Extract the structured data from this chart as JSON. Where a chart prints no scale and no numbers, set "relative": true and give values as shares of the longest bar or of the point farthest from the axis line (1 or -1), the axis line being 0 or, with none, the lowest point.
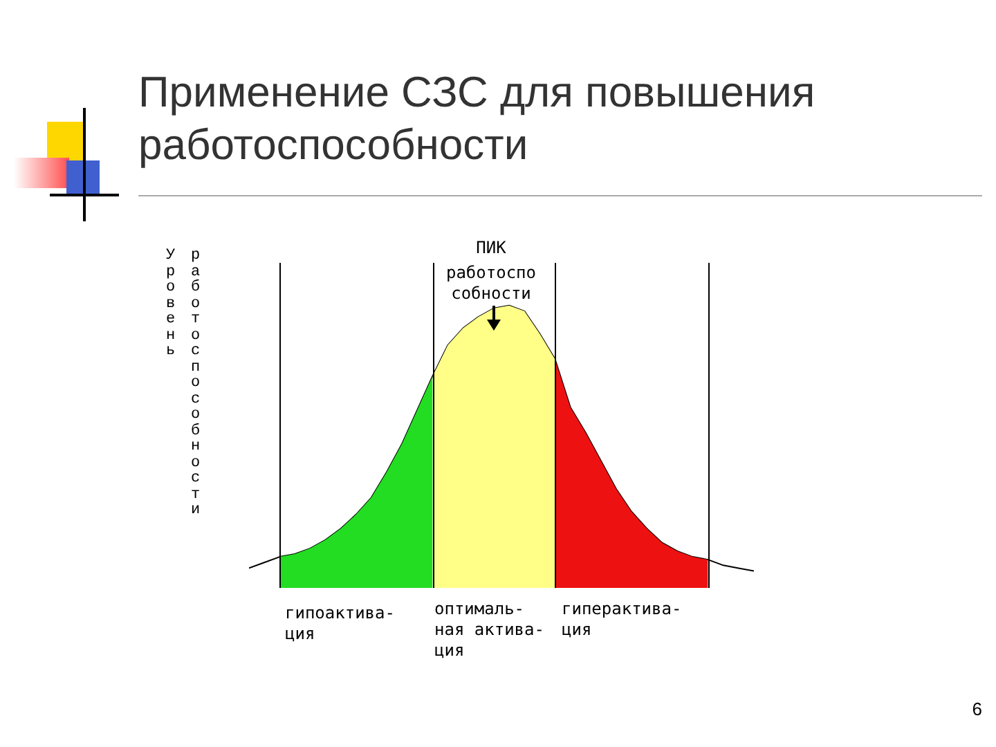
{
  "chart_data": {
    "type": "area",
    "title": "Применение СЗС для повышения работоспособности",
    "ylabel": "Уровень работоспособности",
    "relative": true,
    "legend": false,
    "grid": "x",
    "tick_labels": false,
    "categories": [
      null,
      null,
      null,
      null,
      null,
      null,
      null,
      null,
      null,
      null,
      null,
      null,
      null,
      null,
      null,
      null,
      null,
      null,
      null,
      null,
      null,
      null,
      null,
      null,
      null,
      null,
      null,
      null,
      null,
      null,
      null,
      null,
      null,
      null
    ],
    "series": [
      {
        "type": "area",
        "color": "#22dd22",
        "values": [
          null,
          null,
          0.11,
          0.12,
          0.14,
          0.17,
          0.21,
          0.26,
          0.32,
          0.41,
          0.51,
          0.63,
          0.75,
          null,
          null,
          null,
          null,
          null,
          null,
          null,
          null,
          null,
          null,
          null,
          null,
          null,
          null,
          null,
          null,
          null,
          null,
          null,
          null,
          null
        ]
      },
      {
        "type": "area",
        "color": "#ffff88",
        "values": [
          null,
          null,
          null,
          null,
          null,
          null,
          null,
          null,
          null,
          null,
          null,
          null,
          0.75,
          0.86,
          0.92,
          0.96,
          0.99,
          1,
          0.98,
          0.9,
          0.81,
          null,
          null,
          null,
          null,
          null,
          null,
          null,
          null,
          null,
          null,
          null,
          null,
          null
        ]
      },
      {
        "type": "area",
        "color": "#ee1111",
        "values": [
          null,
          null,
          null,
          null,
          null,
          null,
          null,
          null,
          null,
          null,
          null,
          null,
          null,
          null,
          null,
          null,
          null,
          null,
          null,
          null,
          0.81,
          0.64,
          0.55,
          0.45,
          0.35,
          0.27,
          0.21,
          0.16,
          0.13,
          0.11,
          0.1,
          null,
          null,
          null
        ]
      },
      {
        "type": "line",
        "color": "#000000",
        "values": [
          0.07,
          0.09,
          0.11,
          0.12,
          0.14,
          0.17,
          0.21,
          0.26,
          0.32,
          0.41,
          0.51,
          0.63,
          0.75,
          0.86,
          0.92,
          0.96,
          0.99,
          1,
          0.98,
          0.9,
          0.81,
          0.64,
          0.55,
          0.45,
          0.35,
          0.27,
          0.21,
          0.16,
          0.13,
          0.11,
          0.1,
          0.08,
          0.07,
          0.06
        ]
      }
    ],
    "annotations": [
      "ПИК",
      "работоспо собности",
      "гипоактива- ция",
      "оптималь- ная актива- ция",
      "гиперактива- ция",
      "6"
    ]
  }
}
